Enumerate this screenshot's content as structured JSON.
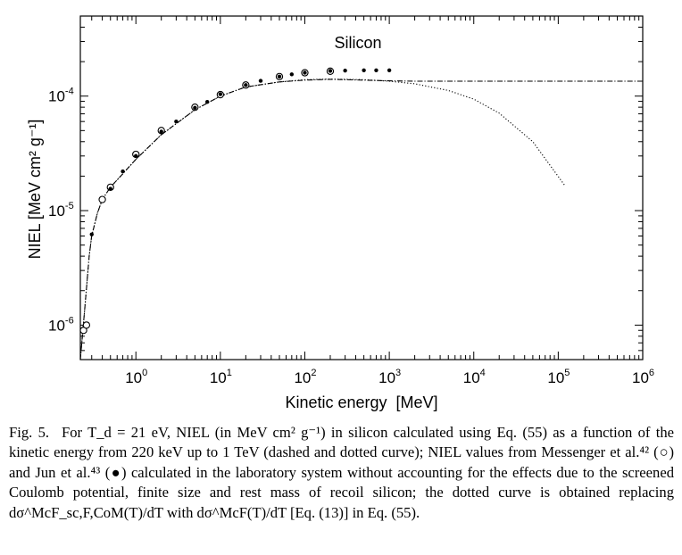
{
  "chart_data": {
    "type": "scatter",
    "title": "Silicon",
    "xlabel": "Kinetic energy  [MeV]",
    "ylabel": "NIEL [MeV cm² g⁻¹]",
    "x_scale": "log",
    "y_scale": "log",
    "xlim": [
      0.22,
      1000000
    ],
    "ylim": [
      5e-07,
      0.0005
    ],
    "grid": false,
    "x_ticks": [
      {
        "value": 1,
        "base": "10",
        "exp": "0"
      },
      {
        "value": 10,
        "base": "10",
        "exp": "1"
      },
      {
        "value": 100,
        "base": "10",
        "exp": "2"
      },
      {
        "value": 1000,
        "base": "10",
        "exp": "3"
      },
      {
        "value": 10000,
        "base": "10",
        "exp": "4"
      },
      {
        "value": 100000,
        "base": "10",
        "exp": "5"
      },
      {
        "value": 1000000,
        "base": "10",
        "exp": "6"
      }
    ],
    "y_ticks": [
      {
        "value": 1e-06,
        "base": "10",
        "exp": "-6"
      },
      {
        "value": 1e-05,
        "base": "10",
        "exp": "-5"
      },
      {
        "value": 0.0001,
        "base": "10",
        "exp": "-4"
      }
    ],
    "series": [
      {
        "style": "dashed-dotted",
        "x": [
          0.22,
          0.25,
          0.28,
          0.3,
          0.35,
          0.4,
          0.5,
          0.7,
          1,
          2,
          5,
          10,
          20,
          50,
          100,
          200,
          500,
          1000,
          2000,
          10000,
          100000,
          1000000
        ],
        "y": [
          5e-07,
          1.5e-06,
          4e-06,
          6e-06,
          9.5e-06,
          1.25e-05,
          1.6e-05,
          2.1e-05,
          2.8e-05,
          4.6e-05,
          7.6e-05,
          0.0001,
          0.00012,
          0.000133,
          0.000138,
          0.00014,
          0.000138,
          0.000136,
          0.000135,
          0.000135,
          0.000135,
          0.000135
        ]
      },
      {
        "style": "dotted",
        "x": [
          0.22,
          0.25,
          0.28,
          0.3,
          0.35,
          0.4,
          0.5,
          0.7,
          1,
          2,
          5,
          10,
          20,
          50,
          100,
          200,
          500,
          1000,
          2000,
          5000,
          10000,
          20000,
          50000,
          120000
        ],
        "y": [
          5e-07,
          1.5e-06,
          4e-06,
          6e-06,
          9.5e-06,
          1.25e-05,
          1.6e-05,
          2.1e-05,
          2.8e-05,
          4.6e-05,
          7.6e-05,
          0.0001,
          0.00012,
          0.000133,
          0.000139,
          0.000141,
          0.000139,
          0.000135,
          0.000128,
          0.000112,
          9.4e-05,
          7.1e-05,
          4e-05,
          1.65e-05
        ]
      },
      {
        "name": "Messenger et al.",
        "marker": "open-circle",
        "x": [
          0.24,
          0.26,
          0.4,
          0.5,
          1,
          2,
          5,
          10,
          20,
          50,
          100,
          200
        ],
        "y": [
          9e-07,
          1e-06,
          1.25e-05,
          1.6e-05,
          3.1e-05,
          5e-05,
          8e-05,
          0.000103,
          0.000125,
          0.000148,
          0.00016,
          0.000165
        ]
      },
      {
        "name": "Jun et al.",
        "marker": "filled-circle",
        "x": [
          0.3,
          0.5,
          0.7,
          1,
          2,
          3,
          5,
          7,
          10,
          20,
          30,
          50,
          70,
          100,
          200,
          300,
          500,
          700,
          1000
        ],
        "y": [
          6.2e-06,
          1.55e-05,
          2.2e-05,
          3e-05,
          4.9e-05,
          6e-05,
          7.9e-05,
          8.9e-05,
          0.000104,
          0.000125,
          0.000136,
          0.000148,
          0.000155,
          0.00016,
          0.000166,
          0.000167,
          0.000168,
          0.000168,
          0.000168
        ]
      }
    ]
  },
  "caption": {
    "fig_label": "Fig. 5.",
    "text": "For T_d = 21 eV, NIEL (in MeV cm² g⁻¹) in silicon calculated using Eq. (55) as a function of the kinetic energy from 220 keV up to 1 TeV (dashed and dotted curve); NIEL values from Messenger et al.⁴² (○) and Jun et al.⁴³ (●) calculated in the laboratory system without accounting for the effects due to the screened Coulomb potential, finite size and rest mass of recoil silicon; the dotted curve is obtained replacing dσ^McF_sc,F,CoM(T)/dT with dσ^McF(T)/dT [Eq. (13)] in Eq. (55)."
  }
}
